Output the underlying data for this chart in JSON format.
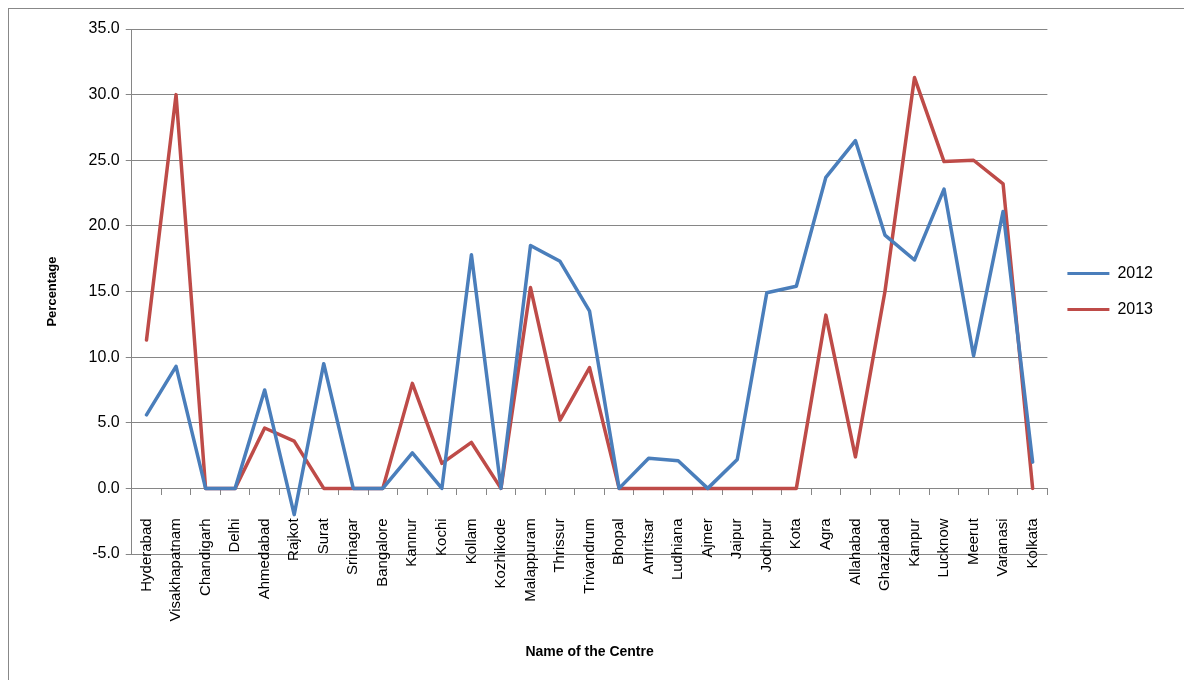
{
  "chart_data": {
    "type": "line",
    "xlabel": "Name of the Centre",
    "ylabel": "Percentage",
    "categories": [
      "Hyderabad",
      "Visakhapatnam",
      "Chandigarh",
      "Delhi",
      "Ahmedabad",
      "Rajkot",
      "Surat",
      "Srinagar",
      "Bangalore",
      "Kannur",
      "Kochi",
      "Kollam",
      "Kozhikode",
      "Malappuram",
      "Thrissur",
      "Trivandrum",
      "Bhopal",
      "Amritsar",
      "Ludhiana",
      "Ajmer",
      "Jaipur",
      "Jodhpur",
      "Kota",
      "Agra",
      "Allahabad",
      "Ghaziabad",
      "Kanpur",
      "Lucknow",
      "Meerut",
      "Varanasi",
      "Kolkata"
    ],
    "series": [
      {
        "name": "2012",
        "color": "#4a7ebb",
        "values": [
          5.6,
          9.3,
          0,
          0,
          7.5,
          -2.0,
          9.5,
          0,
          0,
          2.7,
          0,
          17.8,
          0,
          18.5,
          17.3,
          13.5,
          0,
          2.3,
          2.1,
          0,
          2.2,
          14.9,
          15.4,
          23.7,
          26.5,
          19.3,
          17.4,
          22.8,
          10.1,
          21.1,
          2.0
        ]
      },
      {
        "name": "2013",
        "color": "#be4b48",
        "values": [
          11.3,
          30.0,
          0,
          0,
          4.6,
          3.6,
          0,
          0,
          0,
          8.0,
          1.9,
          3.5,
          0,
          15.3,
          5.2,
          9.2,
          0,
          0,
          0,
          0,
          0,
          0,
          0,
          13.2,
          2.4,
          15.0,
          31.3,
          24.9,
          25.0,
          23.2,
          0
        ]
      }
    ],
    "ylim": [
      -5,
      35
    ],
    "yticks": [
      {
        "value": -5,
        "label": "-5.0"
      },
      {
        "value": 0,
        "label": "0.0"
      },
      {
        "value": 5,
        "label": "5.0"
      },
      {
        "value": 10,
        "label": "10.0"
      },
      {
        "value": 15,
        "label": "15.0"
      },
      {
        "value": 20,
        "label": "20.0"
      },
      {
        "value": 25,
        "label": "25.0"
      },
      {
        "value": 30,
        "label": "30.0"
      },
      {
        "value": 35,
        "label": "35.0"
      }
    ],
    "grid": "y",
    "legend": "right",
    "marker": "none",
    "line_style": "solid"
  }
}
